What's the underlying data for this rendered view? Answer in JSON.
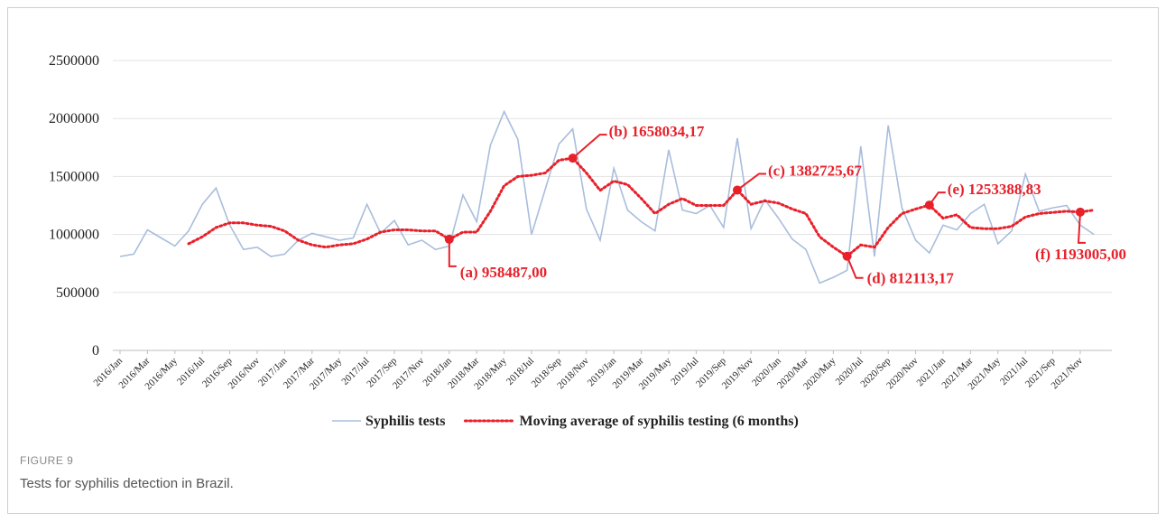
{
  "chart_data": {
    "type": "line",
    "categories": [
      "2016/Jan",
      null,
      "2016/Mar",
      null,
      "2016/May",
      null,
      "2016/Jul",
      null,
      "2016/Sep",
      null,
      "2016/Nov",
      null,
      "2017/Jan",
      null,
      "2017/Mar",
      null,
      "2017/May",
      null,
      "2017/Jul",
      null,
      "2017/Sep",
      null,
      "2017/Nov",
      null,
      "2018/Jan",
      null,
      "2018/Mar",
      null,
      "2018/May",
      null,
      "2018/Jul",
      null,
      "2018/Sep",
      null,
      "2018/Nov",
      null,
      "2019/Jan",
      null,
      "2019/Mar",
      null,
      "2019/May",
      null,
      "2019/Jul",
      null,
      "2019/Sep",
      null,
      "2019/Nov",
      null,
      "2020/Jan",
      null,
      "2020/Mar",
      null,
      "2020/May",
      null,
      "2020/Jul",
      null,
      "2020/Sep",
      null,
      "2020/Nov",
      null,
      "2021/Jan",
      null,
      "2021/Mar",
      null,
      "2021/May",
      null,
      "2021/Jul",
      null,
      "2021/Sep",
      null,
      "2021/Nov",
      null
    ],
    "series": [
      {
        "name": "Syphilis tests",
        "color": "#a9bddc",
        "style": "solid",
        "values": [
          810000,
          830000,
          1040000,
          970000,
          900000,
          1030000,
          1260000,
          1400000,
          1080000,
          870000,
          890000,
          810000,
          830000,
          950000,
          1010000,
          980000,
          950000,
          970000,
          1260000,
          1010000,
          1120000,
          910000,
          950000,
          870000,
          900000,
          1340000,
          1110000,
          1770000,
          2060000,
          1820000,
          1000000,
          1390000,
          1780000,
          1910000,
          1220000,
          950000,
          1570000,
          1210000,
          1110000,
          1030000,
          1730000,
          1210000,
          1180000,
          1250000,
          1060000,
          1830000,
          1050000,
          1300000,
          1140000,
          960000,
          870000,
          580000,
          630000,
          690000,
          1760000,
          810000,
          1940000,
          1230000,
          950000,
          840000,
          1080000,
          1040000,
          1180000,
          1260000,
          920000,
          1030000,
          1520000,
          1200000,
          1230000,
          1250000,
          1080000,
          1000000
        ]
      },
      {
        "name": "Moving average of syphilis testing (6 months)",
        "color": "#e8202a",
        "style": "dotted",
        "values": [
          null,
          null,
          null,
          null,
          null,
          920000,
          980000,
          1060000,
          1100000,
          1100000,
          1080000,
          1070000,
          1030000,
          950000,
          910000,
          890000,
          910000,
          920000,
          960000,
          1020000,
          1040000,
          1040000,
          1030000,
          1030000,
          958487,
          1020000,
          1020000,
          1200000,
          1420000,
          1500000,
          1510000,
          1530000,
          1640000,
          1658034.17,
          1530000,
          1380000,
          1460000,
          1430000,
          1310000,
          1180000,
          1260000,
          1310000,
          1250000,
          1250000,
          1250000,
          1382725.67,
          1260000,
          1290000,
          1270000,
          1220000,
          1180000,
          980000,
          890000,
          812113.17,
          910000,
          890000,
          1060000,
          1180000,
          1220000,
          1253388.83,
          1140000,
          1170000,
          1060000,
          1050000,
          1050000,
          1070000,
          1150000,
          1180000,
          1190000,
          1200000,
          1193005,
          1210000
        ],
        "value_labels": [
          null,
          null,
          null,
          null,
          null,
          null,
          null,
          null,
          null,
          null,
          null,
          null,
          null,
          null,
          null,
          null,
          null,
          null,
          null,
          null,
          null,
          null,
          null,
          null,
          "(a) 958487,00",
          null,
          null,
          null,
          null,
          null,
          null,
          null,
          null,
          "(b) 1658034,17",
          null,
          null,
          null,
          null,
          null,
          null,
          null,
          null,
          null,
          null,
          null,
          "(c) 1382725,67",
          null,
          null,
          null,
          null,
          null,
          null,
          null,
          "(d) 812113,17",
          null,
          null,
          null,
          null,
          null,
          "(e) 1253388,83",
          null,
          null,
          null,
          null,
          null,
          null,
          null,
          null,
          null,
          null,
          "(f) 1193005,00",
          null
        ]
      }
    ],
    "ylim": [
      0,
      2500000
    ],
    "yticks": [
      0,
      500000,
      1000000,
      1500000,
      2000000,
      2500000
    ],
    "grid": true,
    "legend": "bottom"
  },
  "figure": {
    "label": "FIGURE 9",
    "caption": "Tests for syphilis detection in Brazil."
  }
}
